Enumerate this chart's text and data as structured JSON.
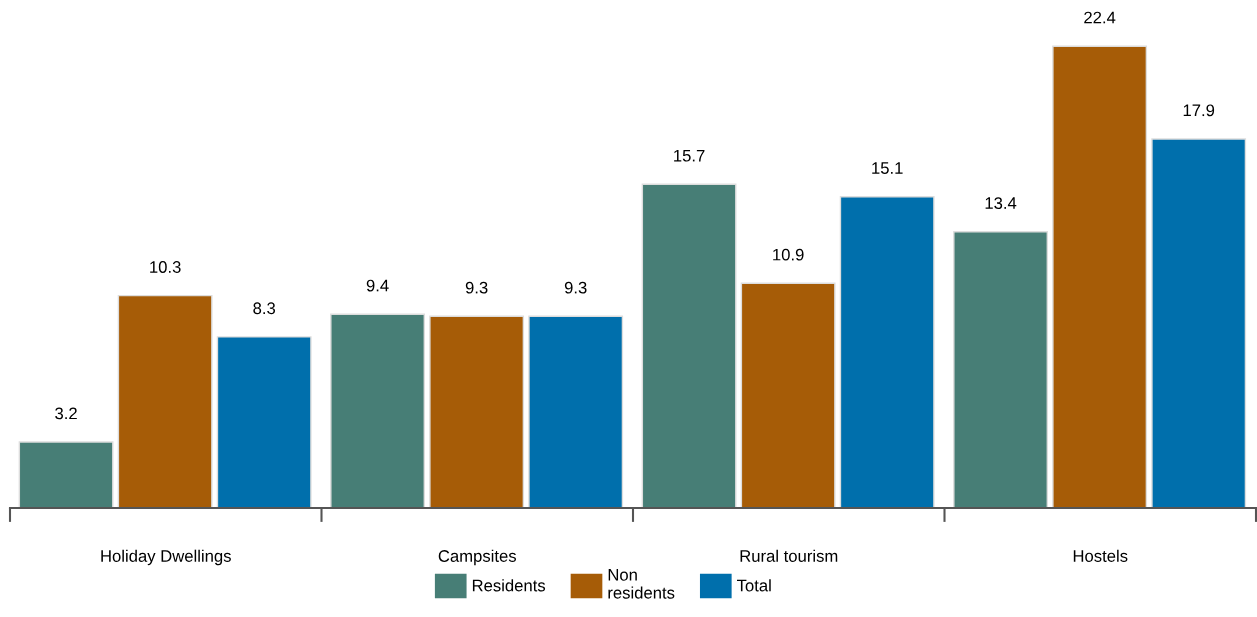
{
  "chart_data": {
    "type": "bar",
    "categories": [
      "Holiday Dwellings",
      "Campsites",
      "Rural tourism",
      "Hostels"
    ],
    "series": [
      {
        "name": "Residents",
        "color": "#477e76",
        "values": [
          3.2,
          9.4,
          15.7,
          13.4
        ]
      },
      {
        "name": "Non residents",
        "color": "#a65c07",
        "values": [
          10.3,
          9.3,
          10.9,
          22.4
        ]
      },
      {
        "name": "Total",
        "color": "#006fac",
        "values": [
          8.3,
          9.3,
          15.1,
          17.9
        ]
      }
    ],
    "tick_labels": "x",
    "data_labels": true,
    "grid": false,
    "legend": "bottom"
  }
}
